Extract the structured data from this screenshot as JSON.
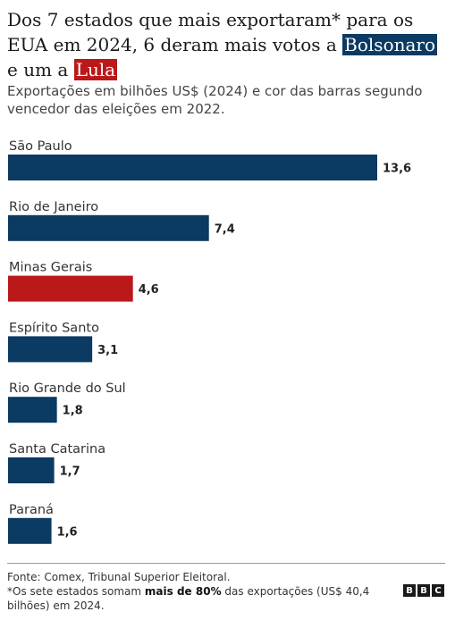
{
  "title": {
    "part1": "Dos 7 estados que mais exportaram* para os EUA em 2024, 6 deram mais votos a ",
    "bolsonaro": "Bolsonaro",
    "part2": " e um a ",
    "lula": "Lula"
  },
  "subtitle": "Exportações em bilhões US$ (2024) e cor das barras segundo vencedor das eleições em 2022.",
  "colors": {
    "bolsonaro": "#0b3a63",
    "lula": "#bb1919"
  },
  "chart_data": {
    "type": "bar",
    "orientation": "horizontal",
    "categories": [
      "São Paulo",
      "Rio de Janeiro",
      "Minas Gerais",
      "Espírito Santo",
      "Rio Grande do Sul",
      "Santa Catarina",
      "Paraná"
    ],
    "values": [
      13.6,
      7.4,
      4.6,
      3.1,
      1.8,
      1.7,
      1.6
    ],
    "value_labels": [
      "13,6",
      "7,4",
      "4,6",
      "3,1",
      "1,8",
      "1,7",
      "1,6"
    ],
    "winner": [
      "bolsonaro",
      "bolsonaro",
      "lula",
      "bolsonaro",
      "bolsonaro",
      "bolsonaro",
      "bolsonaro"
    ],
    "xlim": [
      0,
      13.6
    ],
    "grid": false
  },
  "footer": {
    "source": "Fonte: Comex, Tribunal Superior Eleitoral.",
    "note_pre": "*Os sete estados somam ",
    "note_bold": "mais de 80%",
    "note_post": " das exportações (US$ 40,4 bilhões) em 2024.",
    "logo": [
      "B",
      "B",
      "C"
    ]
  }
}
